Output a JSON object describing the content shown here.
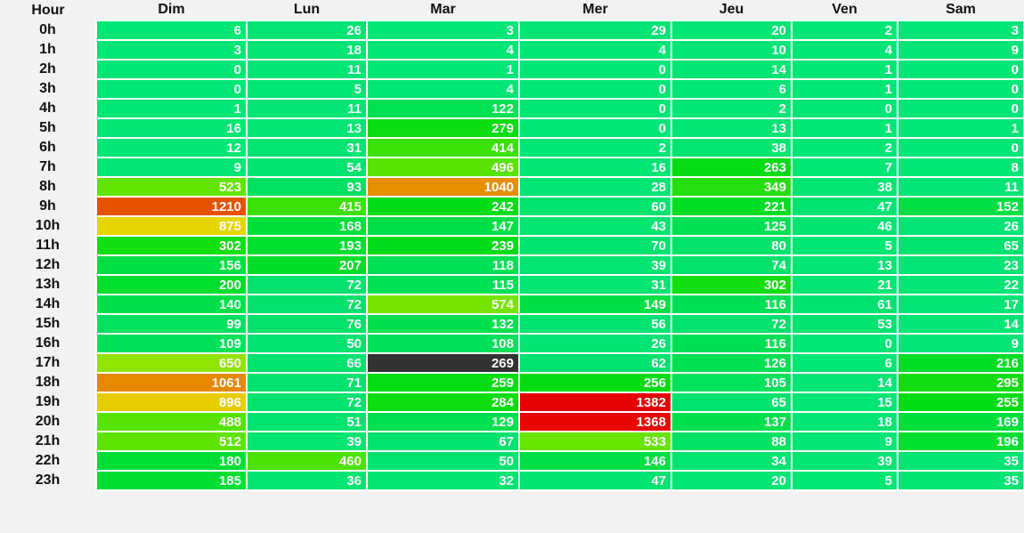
{
  "headers": [
    "Hour",
    "Dim",
    "Lun",
    "Mar",
    "Mer",
    "Jeu",
    "Ven",
    "Sam"
  ],
  "rows": [
    {
      "hour": "0h",
      "values": [
        6,
        26,
        3,
        29,
        20,
        2,
        3
      ]
    },
    {
      "hour": "1h",
      "values": [
        3,
        18,
        4,
        4,
        10,
        4,
        9
      ]
    },
    {
      "hour": "2h",
      "values": [
        0,
        11,
        1,
        0,
        14,
        1,
        0
      ]
    },
    {
      "hour": "3h",
      "values": [
        0,
        5,
        4,
        0,
        6,
        1,
        0
      ]
    },
    {
      "hour": "4h",
      "values": [
        1,
        11,
        122,
        0,
        2,
        0,
        0
      ]
    },
    {
      "hour": "5h",
      "values": [
        16,
        13,
        279,
        0,
        13,
        1,
        1
      ]
    },
    {
      "hour": "6h",
      "values": [
        12,
        31,
        414,
        2,
        38,
        2,
        0
      ]
    },
    {
      "hour": "7h",
      "values": [
        9,
        54,
        496,
        16,
        263,
        7,
        8
      ]
    },
    {
      "hour": "8h",
      "values": [
        523,
        93,
        1040,
        28,
        349,
        38,
        11
      ]
    },
    {
      "hour": "9h",
      "values": [
        1210,
        415,
        242,
        60,
        221,
        47,
        152
      ]
    },
    {
      "hour": "10h",
      "values": [
        875,
        168,
        147,
        43,
        125,
        46,
        26
      ]
    },
    {
      "hour": "11h",
      "values": [
        302,
        193,
        239,
        70,
        80,
        5,
        65
      ]
    },
    {
      "hour": "12h",
      "values": [
        156,
        207,
        118,
        39,
        74,
        13,
        23
      ]
    },
    {
      "hour": "13h",
      "values": [
        200,
        72,
        115,
        31,
        302,
        21,
        22
      ]
    },
    {
      "hour": "14h",
      "values": [
        140,
        72,
        574,
        149,
        116,
        61,
        17
      ]
    },
    {
      "hour": "15h",
      "values": [
        99,
        76,
        132,
        56,
        72,
        53,
        14
      ]
    },
    {
      "hour": "16h",
      "values": [
        109,
        50,
        108,
        26,
        116,
        0,
        9
      ]
    },
    {
      "hour": "17h",
      "values": [
        650,
        66,
        269,
        62,
        126,
        6,
        216
      ]
    },
    {
      "hour": "18h",
      "values": [
        1061,
        71,
        259,
        256,
        105,
        14,
        295
      ]
    },
    {
      "hour": "19h",
      "values": [
        896,
        72,
        284,
        1382,
        65,
        15,
        255
      ]
    },
    {
      "hour": "20h",
      "values": [
        488,
        51,
        129,
        1368,
        137,
        18,
        169
      ]
    },
    {
      "hour": "21h",
      "values": [
        512,
        39,
        67,
        533,
        88,
        9,
        196
      ]
    },
    {
      "hour": "22h",
      "values": [
        180,
        460,
        50,
        146,
        34,
        39,
        35
      ]
    },
    {
      "hour": "23h",
      "values": [
        185,
        36,
        32,
        47,
        20,
        5,
        35
      ]
    }
  ],
  "highlighted_cell": {
    "hour": "17h",
    "day": "Mar"
  },
  "colors": {
    "low": "#00e676",
    "max": "#e60000",
    "highlight": "#333333"
  }
}
